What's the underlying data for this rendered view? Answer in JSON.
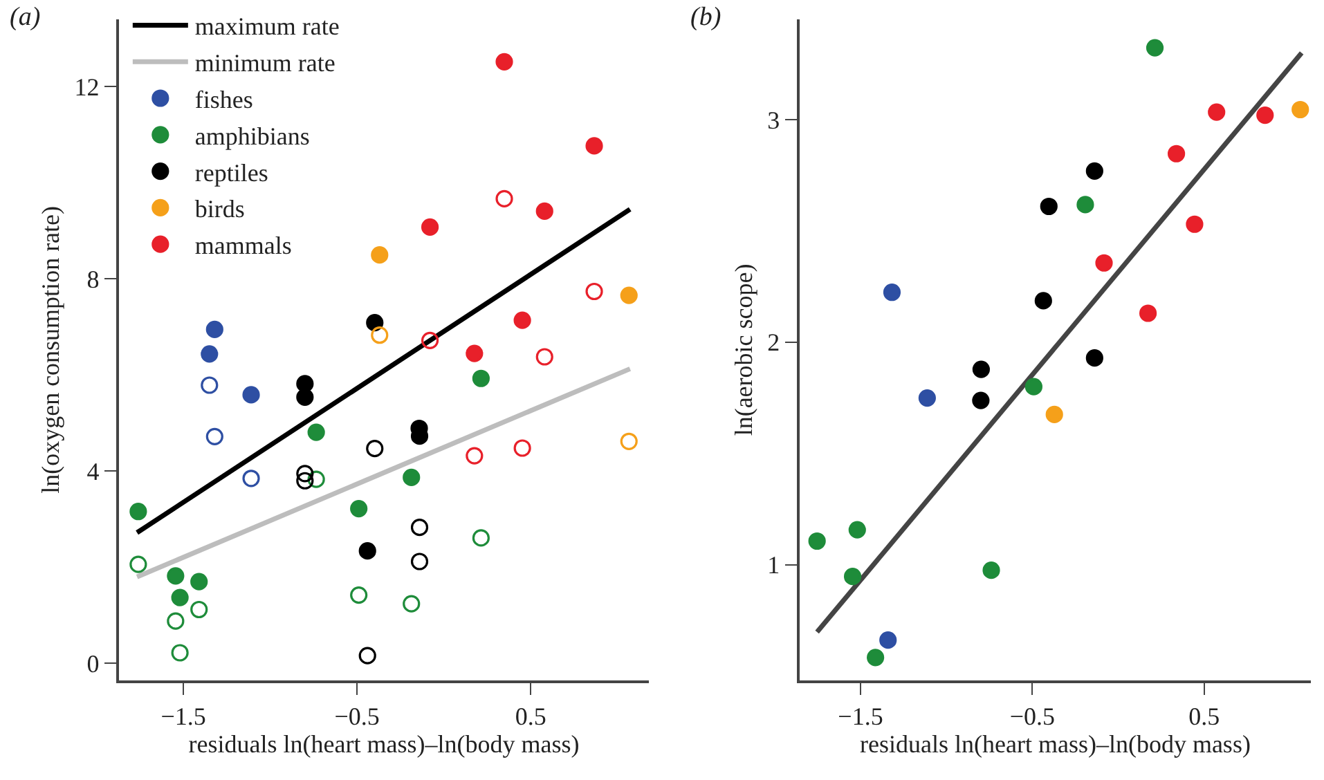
{
  "chart_data": [
    {
      "type": "scatter",
      "title": "(a)",
      "xlabel": "residuals ln(heart mass)–ln(body mass)",
      "ylabel": "ln(oxygen consumption rate)",
      "xlim": [
        -1.87,
        1.18
      ],
      "ylim": [
        -0.35,
        13.4
      ],
      "xticks": [
        -1.5,
        -0.5,
        0.5
      ],
      "yticks": [
        0,
        4,
        8,
        12
      ],
      "grid": false,
      "legend": "top left",
      "series": [
        {
          "name": "maximum rate",
          "type": "line",
          "color": "#000000",
          "marker": "none",
          "x": [
            -1.767,
            1.072
          ],
          "values": [
            2.72,
            9.45
          ]
        },
        {
          "name": "minimum rate",
          "type": "line",
          "color": "#bdbdbd",
          "marker": "none",
          "x": [
            -1.767,
            1.072
          ],
          "values": [
            1.8,
            6.13
          ]
        },
        {
          "name": "fishes",
          "color": "#2e4fa3",
          "marker": "circle",
          "x": [
            -1.32,
            -1.35,
            -1.11
          ],
          "values": [
            6.95,
            6.44,
            5.59
          ]
        },
        {
          "name": "amphibians",
          "color": "#1e8c3a",
          "marker": "circle",
          "x": [
            -1.76,
            -1.545,
            -1.52,
            -1.41,
            -0.735,
            -0.49,
            -0.187,
            0.214
          ],
          "values": [
            3.16,
            1.82,
            1.37,
            1.7,
            4.81,
            3.22,
            3.87,
            5.93
          ]
        },
        {
          "name": "reptiles",
          "color": "#000000",
          "marker": "circle",
          "x": [
            -0.8,
            -0.8,
            -0.398,
            -0.142,
            -0.14,
            -0.44
          ],
          "values": [
            5.82,
            5.54,
            7.09,
            4.89,
            4.73,
            2.34
          ]
        },
        {
          "name": "birds",
          "color": "#f5a01a",
          "marker": "circle",
          "x": [
            -0.37,
            1.066
          ],
          "values": [
            8.5,
            7.66
          ]
        },
        {
          "name": "mammals",
          "color": "#e8202a",
          "marker": "circle",
          "x": [
            0.348,
            0.866,
            0.58,
            -0.08,
            0.452,
            0.176
          ],
          "values": [
            12.52,
            10.77,
            9.41,
            9.08,
            7.14,
            6.45
          ]
        },
        {
          "color": "#2e4fa3",
          "marker": "circle-open",
          "x": [
            -1.35,
            -1.32,
            -1.11
          ],
          "values": [
            5.79,
            4.72,
            3.85
          ]
        },
        {
          "color": "#1e8c3a",
          "marker": "circle-open",
          "x": [
            -1.76,
            -1.545,
            -1.52,
            -1.41,
            -0.735,
            -0.49,
            -0.187,
            0.214
          ],
          "values": [
            2.06,
            0.88,
            0.22,
            1.12,
            3.83,
            1.42,
            1.24,
            2.61
          ]
        },
        {
          "color": "#000000",
          "marker": "circle-open",
          "x": [
            -0.8,
            -0.8,
            -0.398,
            -0.14,
            -0.14,
            -0.44
          ],
          "values": [
            3.95,
            3.8,
            4.47,
            2.83,
            2.12,
            0.16
          ]
        },
        {
          "color": "#f5a01a",
          "marker": "circle-open",
          "x": [
            -0.37,
            1.066
          ],
          "values": [
            6.83,
            4.62
          ]
        },
        {
          "color": "#e8202a",
          "marker": "circle-open",
          "x": [
            0.348,
            0.866,
            0.58,
            -0.08,
            0.452,
            0.176
          ],
          "values": [
            9.67,
            7.74,
            6.38,
            6.72,
            4.48,
            4.32
          ]
        }
      ]
    },
    {
      "type": "scatter",
      "title": "(b)",
      "xlabel": "residuals ln(heart mass)–ln(body mass)",
      "ylabel": "ln(aerobic scope)",
      "xlim": [
        -1.854,
        1.12
      ],
      "ylim": [
        0.481,
        3.45
      ],
      "xticks": [
        -1.5,
        -0.5,
        0.5
      ],
      "yticks": [
        1,
        2,
        3
      ],
      "grid": false,
      "series": [
        {
          "type": "line",
          "color": "#444444",
          "marker": "none",
          "x": [
            -1.753,
            1.067
          ],
          "values": [
            0.697,
            3.3
          ]
        },
        {
          "color": "#2e4fa3",
          "marker": "circle",
          "x": [
            -1.317,
            -1.112,
            -1.34
          ],
          "values": [
            2.224,
            1.749,
            0.661
          ]
        },
        {
          "color": "#1e8c3a",
          "marker": "circle",
          "x": [
            -1.753,
            -1.519,
            -1.546,
            -1.413,
            -0.739,
            -0.492,
            -0.192,
            0.213
          ],
          "values": [
            1.106,
            1.157,
            0.947,
            0.583,
            0.975,
            1.8,
            2.618,
            3.323
          ]
        },
        {
          "color": "#000000",
          "marker": "circle",
          "x": [
            -0.798,
            -0.8,
            -0.436,
            -0.404,
            -0.138,
            -0.138
          ],
          "values": [
            1.878,
            1.738,
            2.186,
            2.61,
            2.769,
            1.929
          ]
        },
        {
          "color": "#f5a01a",
          "marker": "circle",
          "x": [
            -0.372,
            1.059
          ],
          "values": [
            1.675,
            3.045
          ]
        },
        {
          "color": "#e8202a",
          "marker": "circle",
          "x": [
            -0.083,
            0.173,
            0.444,
            0.338,
            0.572,
            0.854
          ],
          "values": [
            2.356,
            2.13,
            2.53,
            2.847,
            3.034,
            3.02
          ]
        }
      ]
    }
  ]
}
